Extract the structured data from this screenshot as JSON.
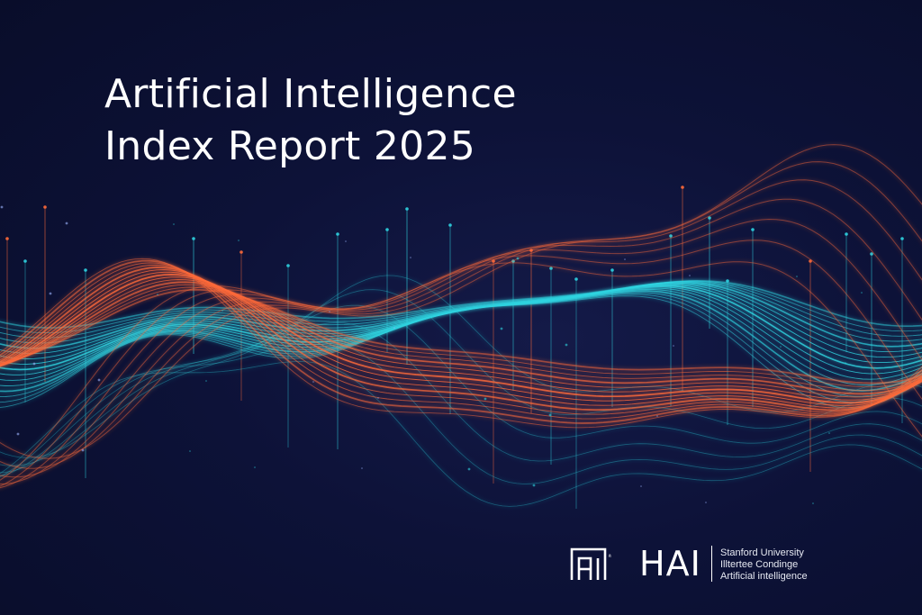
{
  "title": {
    "line1": "Artificial Intelligence",
    "line2": "Index Report 2025"
  },
  "branding": {
    "logo_mark_suffix": "ª",
    "hai": "HAI",
    "org_line1": "Stanford University",
    "org_line2": "Illtertee Condinge",
    "org_line3": "Artificial intelligence"
  },
  "colors": {
    "background": "#0b1030",
    "cyan": "#2fd3e0",
    "orange": "#ff6a3a",
    "text": "#ffffff"
  }
}
